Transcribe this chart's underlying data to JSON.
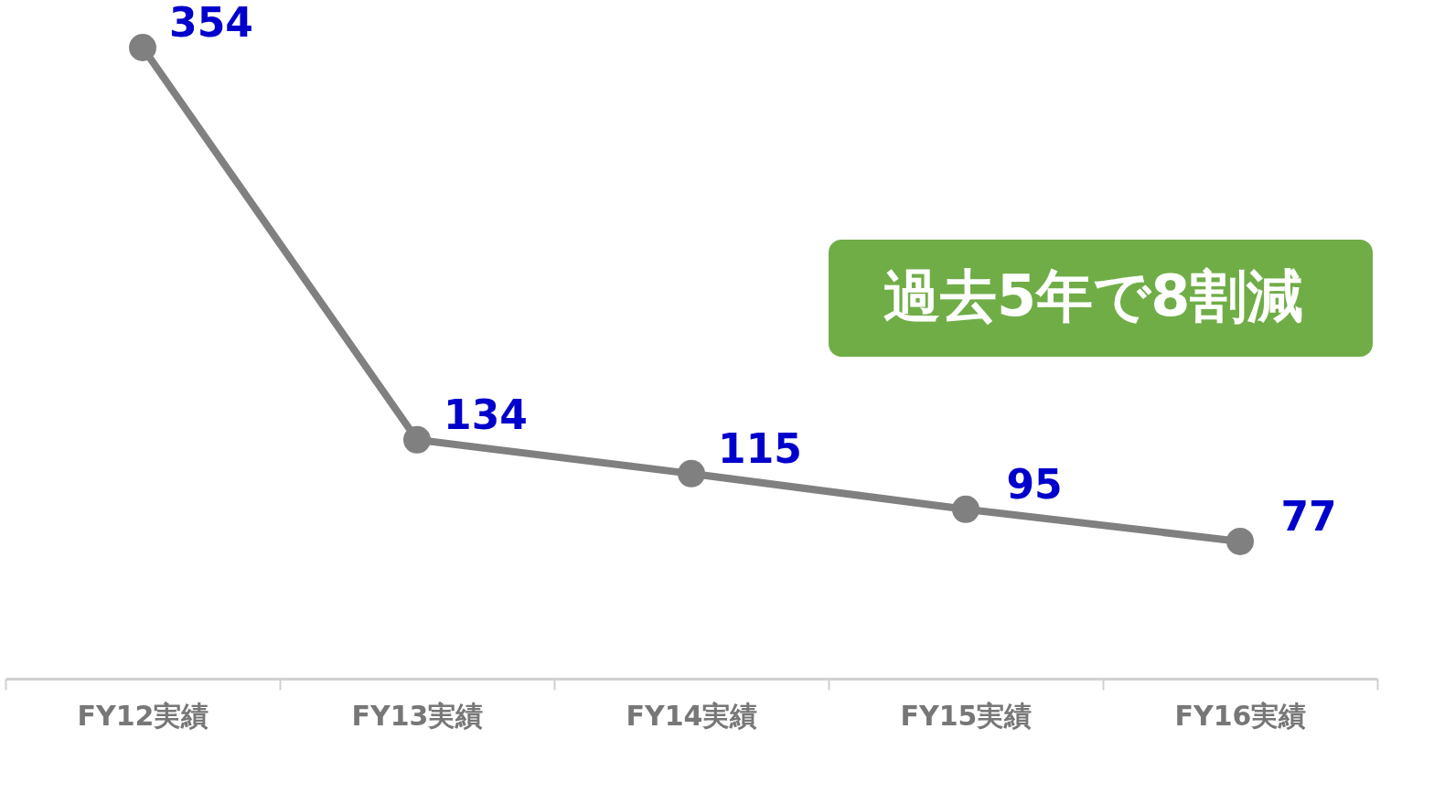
{
  "chart_data": {
    "type": "line",
    "categories": [
      "FY12実績",
      "FY13実績",
      "FY14実績",
      "FY15実績",
      "FY16実績"
    ],
    "series": [
      {
        "color": "#808080",
        "values": [
          354,
          134,
          115,
          95,
          77
        ]
      }
    ],
    "data_labels": true,
    "marker": "circle",
    "line_style": "solid",
    "grid": false,
    "tick_labels": "x",
    "annotations": [
      "過去5年で8割減"
    ]
  }
}
